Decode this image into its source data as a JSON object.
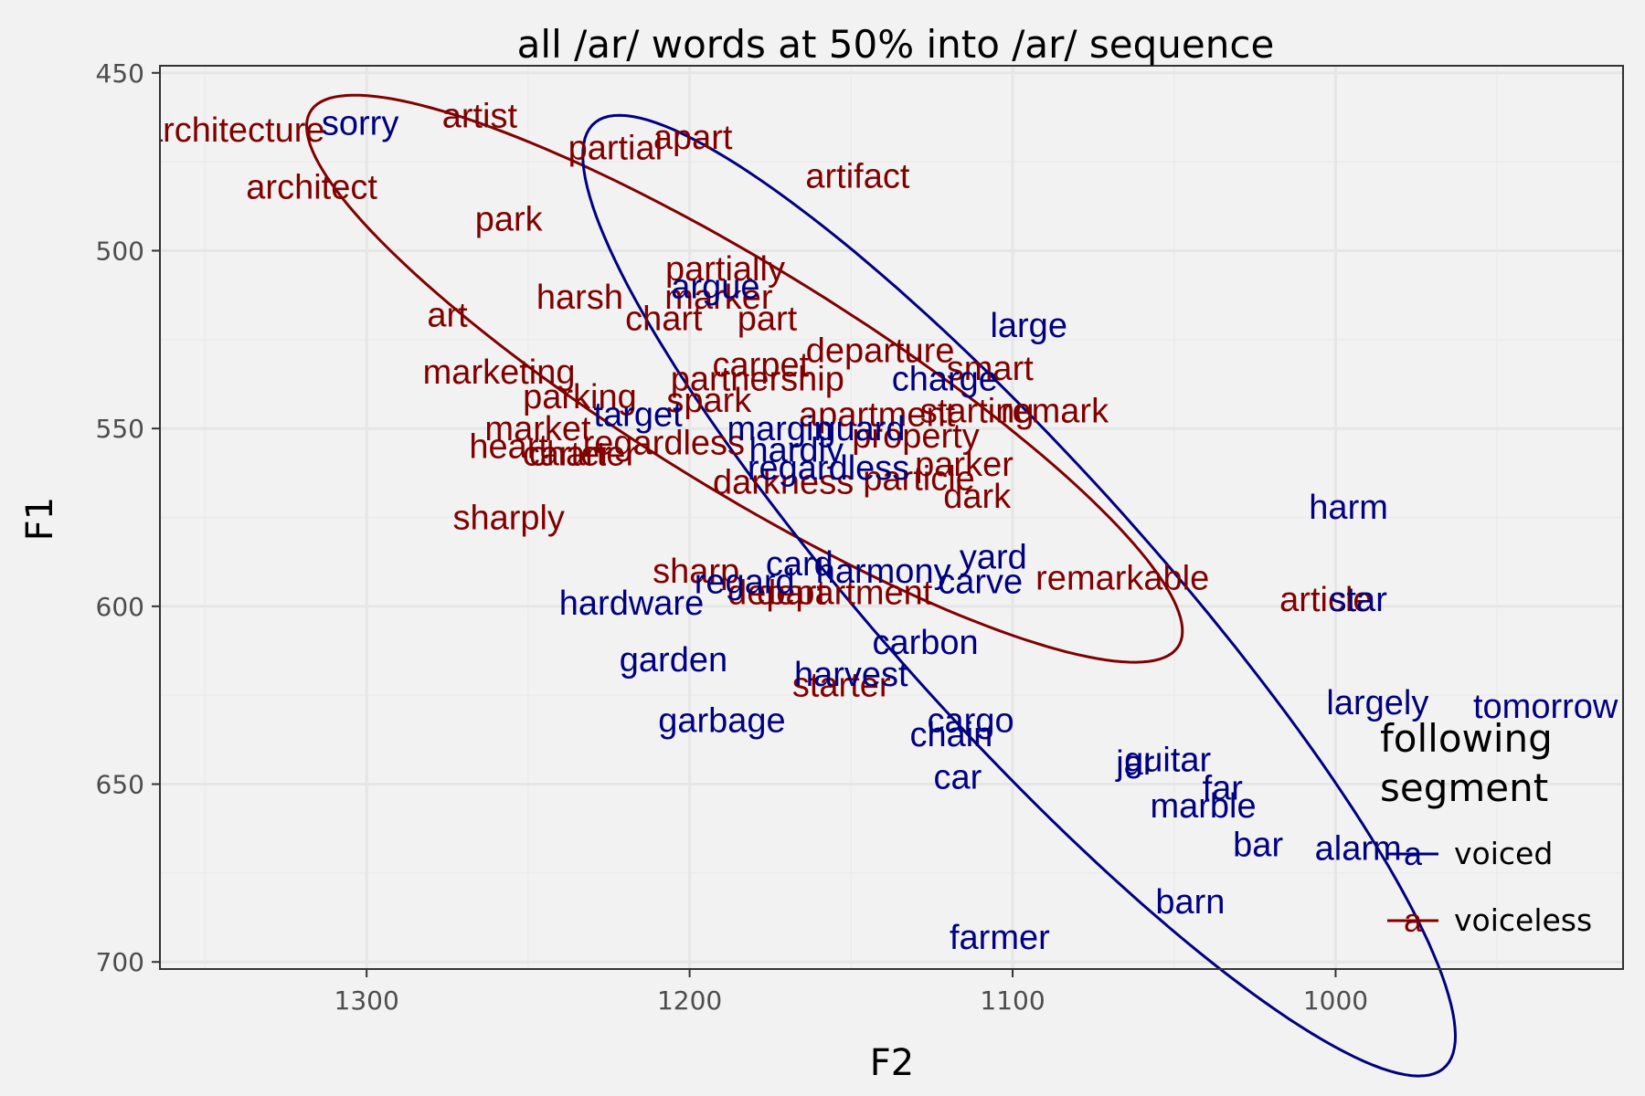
{
  "chart_data": {
    "type": "scatter",
    "title": "all /ar/ words at 50% into /ar/ sequence",
    "xlabel": "F2",
    "ylabel": "F1",
    "xlim": [
      1364,
      911
    ],
    "ylim": [
      448,
      702
    ],
    "x_reversed": true,
    "y_reversed": true,
    "x_ticks": [
      1300,
      1200,
      1100,
      1000
    ],
    "y_ticks": [
      450,
      500,
      550,
      600,
      650,
      700
    ],
    "grid": true,
    "legend": {
      "title": "following\nsegment",
      "placement": "right-inside-bottom",
      "key_glyph": "a",
      "entries": [
        {
          "name": "voiced",
          "color": "#000080"
        },
        {
          "name": "voiceless",
          "color": "#800000"
        }
      ]
    },
    "series": [
      {
        "name": "voiceless",
        "color": "#800000",
        "points": [
          {
            "label": "architecture",
            "x": 1341,
            "y": 466
          },
          {
            "label": "artist",
            "x": 1265,
            "y": 462
          },
          {
            "label": "apart",
            "x": 1199,
            "y": 468
          },
          {
            "label": "partial",
            "x": 1223,
            "y": 471
          },
          {
            "label": "architect",
            "x": 1317,
            "y": 482
          },
          {
            "label": "artifact",
            "x": 1148,
            "y": 479
          },
          {
            "label": "park",
            "x": 1256,
            "y": 491
          },
          {
            "label": "partially",
            "x": 1189,
            "y": 505
          },
          {
            "label": "harsh",
            "x": 1234,
            "y": 513
          },
          {
            "label": "marker",
            "x": 1191,
            "y": 513
          },
          {
            "label": "art",
            "x": 1275,
            "y": 518
          },
          {
            "label": "chart",
            "x": 1208,
            "y": 519
          },
          {
            "label": "part",
            "x": 1176,
            "y": 519
          },
          {
            "label": "departure",
            "x": 1141,
            "y": 528
          },
          {
            "label": "carpet",
            "x": 1178,
            "y": 532
          },
          {
            "label": "smart",
            "x": 1107,
            "y": 533
          },
          {
            "label": "marketing",
            "x": 1259,
            "y": 534
          },
          {
            "label": "partnership",
            "x": 1179,
            "y": 536
          },
          {
            "label": "parking",
            "x": 1234,
            "y": 541
          },
          {
            "label": "spark",
            "x": 1194,
            "y": 542
          },
          {
            "label": "apartment",
            "x": 1142,
            "y": 546
          },
          {
            "label": "starting",
            "x": 1111,
            "y": 545
          },
          {
            "label": "remark",
            "x": 1087,
            "y": 545
          },
          {
            "label": "market",
            "x": 1247,
            "y": 550
          },
          {
            "label": "regardless",
            "x": 1208,
            "y": 554
          },
          {
            "label": "property",
            "x": 1130,
            "y": 552
          },
          {
            "label": "heart",
            "x": 1256,
            "y": 555
          },
          {
            "label": "carter",
            "x": 1238,
            "y": 557
          },
          {
            "label": "charter",
            "x": 1233,
            "y": 557
          },
          {
            "label": "parker",
            "x": 1115,
            "y": 560
          },
          {
            "label": "darkness",
            "x": 1171,
            "y": 565
          },
          {
            "label": "particle",
            "x": 1129,
            "y": 564
          },
          {
            "label": "dark",
            "x": 1111,
            "y": 569
          },
          {
            "label": "sharply",
            "x": 1256,
            "y": 575
          },
          {
            "label": "sharp",
            "x": 1198,
            "y": 590
          },
          {
            "label": "depart",
            "x": 1173,
            "y": 596
          },
          {
            "label": "department",
            "x": 1152,
            "y": 596
          },
          {
            "label": "remarkable",
            "x": 1066,
            "y": 592
          },
          {
            "label": "article",
            "x": 1003,
            "y": 598
          },
          {
            "label": "starter",
            "x": 1153,
            "y": 622
          }
        ]
      },
      {
        "name": "voiced",
        "color": "#000080",
        "points": [
          {
            "label": "sorry",
            "x": 1302,
            "y": 464
          },
          {
            "label": "argue",
            "x": 1192,
            "y": 510
          },
          {
            "label": "large",
            "x": 1095,
            "y": 521
          },
          {
            "label": "charge",
            "x": 1121,
            "y": 536
          },
          {
            "label": "target",
            "x": 1216,
            "y": 546
          },
          {
            "label": "margin",
            "x": 1172,
            "y": 550
          },
          {
            "label": "guard",
            "x": 1147,
            "y": 550
          },
          {
            "label": "hardly",
            "x": 1167,
            "y": 556
          },
          {
            "label": "regardless",
            "x": 1157,
            "y": 561
          },
          {
            "label": "harm",
            "x": 996,
            "y": 572
          },
          {
            "label": "yard",
            "x": 1106,
            "y": 586
          },
          {
            "label": "card",
            "x": 1166,
            "y": 588
          },
          {
            "label": "harmony",
            "x": 1140,
            "y": 590
          },
          {
            "label": "regard",
            "x": 1183,
            "y": 593
          },
          {
            "label": "carve",
            "x": 1110,
            "y": 593
          },
          {
            "label": "hardware",
            "x": 1218,
            "y": 599
          },
          {
            "label": "star",
            "x": 993,
            "y": 598
          },
          {
            "label": "carbon",
            "x": 1127,
            "y": 610
          },
          {
            "label": "garden",
            "x": 1205,
            "y": 615
          },
          {
            "label": "harvest",
            "x": 1150,
            "y": 619
          },
          {
            "label": "largely",
            "x": 987,
            "y": 627
          },
          {
            "label": "tomorrow",
            "x": 935,
            "y": 628
          },
          {
            "label": "garbage",
            "x": 1190,
            "y": 632
          },
          {
            "label": "cargo",
            "x": 1113,
            "y": 632
          },
          {
            "label": "chain",
            "x": 1119,
            "y": 636
          },
          {
            "label": "guitar",
            "x": 1052,
            "y": 643
          },
          {
            "label": "jar",
            "x": 1062,
            "y": 644
          },
          {
            "label": "car",
            "x": 1117,
            "y": 648
          },
          {
            "label": "far",
            "x": 1035,
            "y": 651
          },
          {
            "label": "marble",
            "x": 1041,
            "y": 656
          },
          {
            "label": "bar",
            "x": 1024,
            "y": 667
          },
          {
            "label": "alarm",
            "x": 993,
            "y": 668
          },
          {
            "label": "barn",
            "x": 1045,
            "y": 683
          },
          {
            "label": "farmer",
            "x": 1104,
            "y": 693
          }
        ]
      }
    ],
    "ellipses": [
      {
        "series": "voiceless",
        "center": [
          1183,
          536
        ],
        "semi_major": 154,
        "semi_minor": 32,
        "angle_deg": -29
      },
      {
        "series": "voiced",
        "center": [
          1098,
          597
        ],
        "semi_major": 187,
        "semi_minor": 39,
        "angle_deg": -45
      }
    ]
  }
}
